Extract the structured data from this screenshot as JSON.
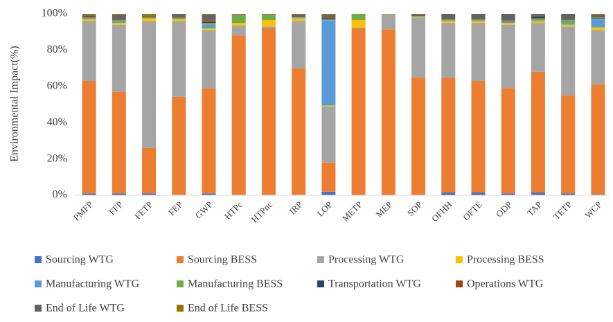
{
  "chart_data": {
    "type": "stacked_bar",
    "y_label": "Environmental Impact(%)",
    "categories": [
      "PMFP",
      "FFP",
      "FETP",
      "FEP",
      "GWP",
      "HTPc",
      "HTPnc",
      "IRP",
      "LOP",
      "METP",
      "MEP",
      "SOP",
      "OFHH",
      "OFTE",
      "ODP",
      "TAP",
      "TETP",
      "WCP"
    ],
    "ylim": [
      0,
      100
    ],
    "yticks": [
      {
        "value": 0,
        "label": "0%"
      },
      {
        "value": 20,
        "label": "20%"
      },
      {
        "value": 40,
        "label": "40%"
      },
      {
        "value": 60,
        "label": "60%"
      },
      {
        "value": 80,
        "label": "80%"
      },
      {
        "value": 100,
        "label": "100%"
      }
    ],
    "grid": false,
    "legend": "bottom",
    "series": [
      {
        "name": "Sourcing WTG",
        "color": "#4472c4",
        "values": [
          1,
          1,
          1,
          0.3,
          1,
          0.3,
          0.3,
          0.3,
          2,
          0.2,
          0.2,
          0.2,
          1.5,
          1.5,
          1,
          1.5,
          1,
          0.5
        ]
      },
      {
        "name": "Sourcing BESS",
        "color": "#ed7d31",
        "values": [
          62,
          56,
          25,
          54,
          58,
          87.7,
          91.7,
          69.7,
          16,
          91.8,
          91.3,
          64.8,
          63,
          61.5,
          58,
          66.5,
          54,
          60.5
        ]
      },
      {
        "name": "Processing WTG",
        "color": "#a5a5a5",
        "values": [
          33,
          37,
          70,
          41.7,
          32,
          5.5,
          1,
          26,
          31,
          0.5,
          8,
          33,
          30.5,
          32,
          35,
          27,
          38,
          30
        ]
      },
      {
        "name": "Processing BESS",
        "color": "#ffc000",
        "values": [
          1,
          1,
          1.5,
          1,
          1,
          1.5,
          3.5,
          1.5,
          0.5,
          4,
          0.1,
          0.3,
          1,
          1,
          1,
          1,
          1,
          1.5
        ]
      },
      {
        "name": "Manufacturing WTG",
        "color": "#5b9bd5",
        "values": [
          0.5,
          0.5,
          0,
          0.3,
          2,
          0,
          0,
          0.5,
          47,
          0,
          0,
          0.2,
          0.5,
          0.5,
          0.5,
          0.5,
          1,
          4.5
        ]
      },
      {
        "name": "Manufacturing BESS",
        "color": "#70ad47",
        "values": [
          0.5,
          1,
          0.5,
          0.5,
          1,
          4.5,
          3,
          0.5,
          0.5,
          3.5,
          0.4,
          0.3,
          0.5,
          0.5,
          0.5,
          1,
          1.5,
          0.5
        ]
      },
      {
        "name": "Transportation WTG",
        "color": "#264478",
        "values": [
          0.3,
          0.2,
          0.2,
          0.2,
          0.5,
          0.1,
          0.1,
          0.5,
          0.5,
          0,
          0,
          0.2,
          0.3,
          0.3,
          0.3,
          1,
          0.2,
          0.3
        ]
      },
      {
        "name": "Operations WTG",
        "color": "#9e480e",
        "values": [
          0.7,
          0.3,
          0.3,
          0.3,
          1,
          0.2,
          0.2,
          0.5,
          0.5,
          0,
          0,
          0.5,
          0.2,
          0.2,
          0.2,
          0.5,
          0.3,
          0.2
        ]
      },
      {
        "name": "End of Life WTG",
        "color": "#636363",
        "values": [
          0.5,
          2.5,
          0.5,
          1.5,
          3,
          0.1,
          0.1,
          0.3,
          1.5,
          0,
          0,
          0.3,
          2.5,
          2.5,
          3.5,
          1,
          3,
          1.5
        ]
      },
      {
        "name": "End of Life BESS",
        "color": "#997300",
        "values": [
          0.5,
          0.5,
          1,
          0.2,
          0.5,
          0.1,
          0.1,
          0.2,
          0.5,
          0,
          0,
          0.2,
          0,
          0,
          0,
          0,
          0,
          0.5
        ]
      }
    ]
  }
}
